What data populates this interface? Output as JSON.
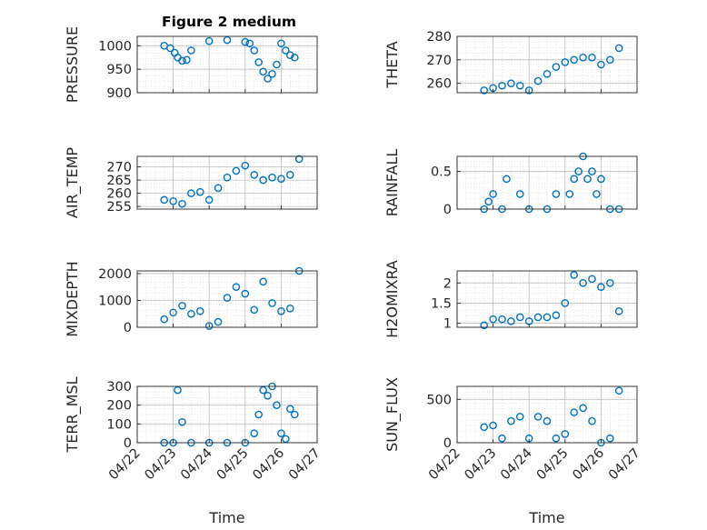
{
  "title": "Figure 2 medium",
  "colors": {
    "marker": "#0072BD",
    "grid": "#bfbfbf",
    "axis": "#262626"
  },
  "chart_data": [
    {
      "type": "scatter",
      "ylabel": "PRESSURE",
      "yticks": [
        "900",
        "950",
        "1000"
      ],
      "ylim": [
        900,
        1020
      ],
      "x": [
        "04/22 18:00",
        "04/22 22:00",
        "04/23 01:00",
        "04/23 03:00",
        "04/23 06:00",
        "04/23 09:00",
        "04/23 12:00",
        "04/24 00:00",
        "04/24 12:00",
        "04/25 00:00",
        "04/25 03:00",
        "04/25 06:00",
        "04/25 09:00",
        "04/25 12:00",
        "04/25 15:00",
        "04/25 18:00",
        "04/25 21:00",
        "04/26 00:00",
        "04/26 03:00",
        "04/26 06:00",
        "04/26 09:00"
      ],
      "y": [
        1000,
        995,
        985,
        975,
        968,
        970,
        990,
        1010,
        1012,
        1008,
        1005,
        990,
        965,
        945,
        930,
        940,
        960,
        1005,
        990,
        980,
        975
      ]
    },
    {
      "type": "scatter",
      "ylabel": "THETA",
      "yticks": [
        "260",
        "270",
        "280"
      ],
      "ylim": [
        256,
        280
      ],
      "x": [
        "04/22 18:00",
        "04/23 00:00",
        "04/23 06:00",
        "04/23 12:00",
        "04/23 18:00",
        "04/24 00:00",
        "04/24 06:00",
        "04/24 12:00",
        "04/24 18:00",
        "04/25 00:00",
        "04/25 06:00",
        "04/25 12:00",
        "04/25 18:00",
        "04/26 00:00",
        "04/26 06:00",
        "04/26 12:00"
      ],
      "y": [
        257,
        258,
        259,
        260,
        259,
        257,
        261,
        264,
        267,
        269,
        270,
        271,
        271,
        268,
        270,
        275
      ]
    },
    {
      "type": "scatter",
      "ylabel": "AIR_TEMP",
      "yticks": [
        "255",
        "260",
        "265",
        "270"
      ],
      "ylim": [
        254,
        274
      ],
      "x": [
        "04/22 18:00",
        "04/23 00:00",
        "04/23 06:00",
        "04/23 12:00",
        "04/23 18:00",
        "04/24 00:00",
        "04/24 06:00",
        "04/24 12:00",
        "04/24 18:00",
        "04/25 00:00",
        "04/25 06:00",
        "04/25 12:00",
        "04/25 18:00",
        "04/26 00:00",
        "04/26 06:00",
        "04/26 12:00"
      ],
      "y": [
        257.5,
        257,
        256,
        260,
        260.5,
        257.5,
        262,
        266,
        268.5,
        270.5,
        267,
        265,
        266,
        265.5,
        267,
        273
      ]
    },
    {
      "type": "scatter",
      "ylabel": "RAINFALL",
      "yticks": [
        "0",
        "0.5"
      ],
      "ylim": [
        0,
        0.7
      ],
      "x": [
        "04/22 18:00",
        "04/22 21:00",
        "04/23 00:00",
        "04/23 06:00",
        "04/23 09:00",
        "04/23 18:00",
        "04/24 00:00",
        "04/24 12:00",
        "04/24 18:00",
        "04/25 03:00",
        "04/25 06:00",
        "04/25 09:00",
        "04/25 12:00",
        "04/25 15:00",
        "04/25 18:00",
        "04/25 21:00",
        "04/26 00:00",
        "04/26 06:00",
        "04/26 12:00"
      ],
      "y": [
        0,
        0.1,
        0.2,
        0,
        0.4,
        0.2,
        0,
        0,
        0.2,
        0.2,
        0.4,
        0.5,
        0.7,
        0.4,
        0.5,
        0.2,
        0.4,
        0,
        0
      ]
    },
    {
      "type": "scatter",
      "ylabel": "MIXDEPTH",
      "yticks": [
        "0",
        "1000",
        "2000"
      ],
      "ylim": [
        0,
        2100
      ],
      "x": [
        "04/22 18:00",
        "04/23 00:00",
        "04/23 06:00",
        "04/23 12:00",
        "04/23 18:00",
        "04/24 00:00",
        "04/24 06:00",
        "04/24 12:00",
        "04/24 18:00",
        "04/25 00:00",
        "04/25 06:00",
        "04/25 12:00",
        "04/25 18:00",
        "04/26 00:00",
        "04/26 06:00",
        "04/26 12:00"
      ],
      "y": [
        300,
        550,
        800,
        500,
        600,
        50,
        200,
        1100,
        1500,
        1250,
        650,
        1700,
        900,
        600,
        700,
        2100
      ]
    },
    {
      "type": "scatter",
      "ylabel": "H2OMIXRA",
      "yticks": [
        "1",
        "1.5",
        "2"
      ],
      "ylim": [
        0.9,
        2.3
      ],
      "x": [
        "04/22 18:00",
        "04/23 00:00",
        "04/23 06:00",
        "04/23 12:00",
        "04/23 18:00",
        "04/24 00:00",
        "04/24 06:00",
        "04/24 12:00",
        "04/24 18:00",
        "04/25 00:00",
        "04/25 06:00",
        "04/25 12:00",
        "04/25 18:00",
        "04/26 00:00",
        "04/26 06:00",
        "04/26 12:00"
      ],
      "y": [
        0.95,
        1.1,
        1.1,
        1.05,
        1.15,
        1.05,
        1.15,
        1.15,
        1.2,
        1.5,
        2.2,
        2.0,
        2.1,
        1.9,
        2.0,
        1.3
      ]
    },
    {
      "type": "scatter",
      "ylabel": "TERR_MSL",
      "yticks": [
        "0",
        "100",
        "200",
        "300"
      ],
      "ylim": [
        0,
        300
      ],
      "x": [
        "04/22 18:00",
        "04/23 00:00",
        "04/23 03:00",
        "04/23 06:00",
        "04/23 12:00",
        "04/24 00:00",
        "04/24 12:00",
        "04/25 00:00",
        "04/25 06:00",
        "04/25 09:00",
        "04/25 12:00",
        "04/25 15:00",
        "04/25 18:00",
        "04/25 21:00",
        "04/26 00:00",
        "04/26 03:00",
        "04/26 06:00",
        "04/26 09:00"
      ],
      "y": [
        0,
        0,
        280,
        110,
        0,
        0,
        0,
        0,
        50,
        150,
        280,
        250,
        300,
        200,
        50,
        20,
        180,
        150
      ]
    },
    {
      "type": "scatter",
      "ylabel": "SUN_FLUX",
      "yticks": [
        "0",
        "500"
      ],
      "ylim": [
        0,
        650
      ],
      "x": [
        "04/22 18:00",
        "04/23 00:00",
        "04/23 06:00",
        "04/23 12:00",
        "04/23 18:00",
        "04/24 00:00",
        "04/24 06:00",
        "04/24 12:00",
        "04/24 18:00",
        "04/25 00:00",
        "04/25 06:00",
        "04/25 12:00",
        "04/25 18:00",
        "04/26 00:00",
        "04/26 06:00",
        "04/26 12:00"
      ],
      "y": [
        180,
        200,
        50,
        250,
        300,
        50,
        300,
        250,
        50,
        100,
        350,
        400,
        250,
        0,
        50,
        600
      ]
    }
  ],
  "xaxis": {
    "label": "Time",
    "ticks": [
      "04/22",
      "04/23",
      "04/24",
      "04/25",
      "04/26",
      "04/27"
    ],
    "range": [
      "04/22",
      "04/27"
    ]
  }
}
